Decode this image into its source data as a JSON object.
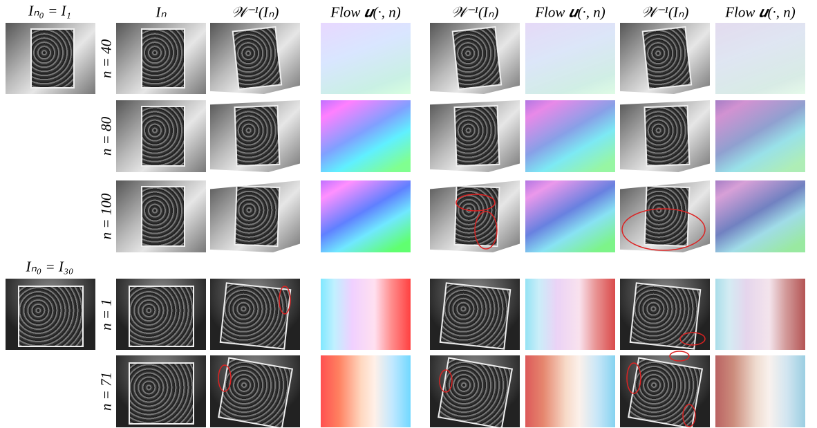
{
  "reference_labels": [
    "Iₙ₀ = I₁",
    "Iₙ₀ = I₃₀"
  ],
  "headers": [
    "Iₙ",
    "𝒲⁻¹(Iₙ)",
    "Flow 𝒖(·, n)",
    "𝒲⁻¹(Iₙ)",
    "Flow 𝒖(·, n)",
    "𝒲⁻¹(Iₙ)",
    "Flow 𝒖(·, n)"
  ],
  "row_labels": [
    "n = 40",
    "n = 80",
    "n = 100",
    "n = 1",
    "n = 71"
  ]
}
